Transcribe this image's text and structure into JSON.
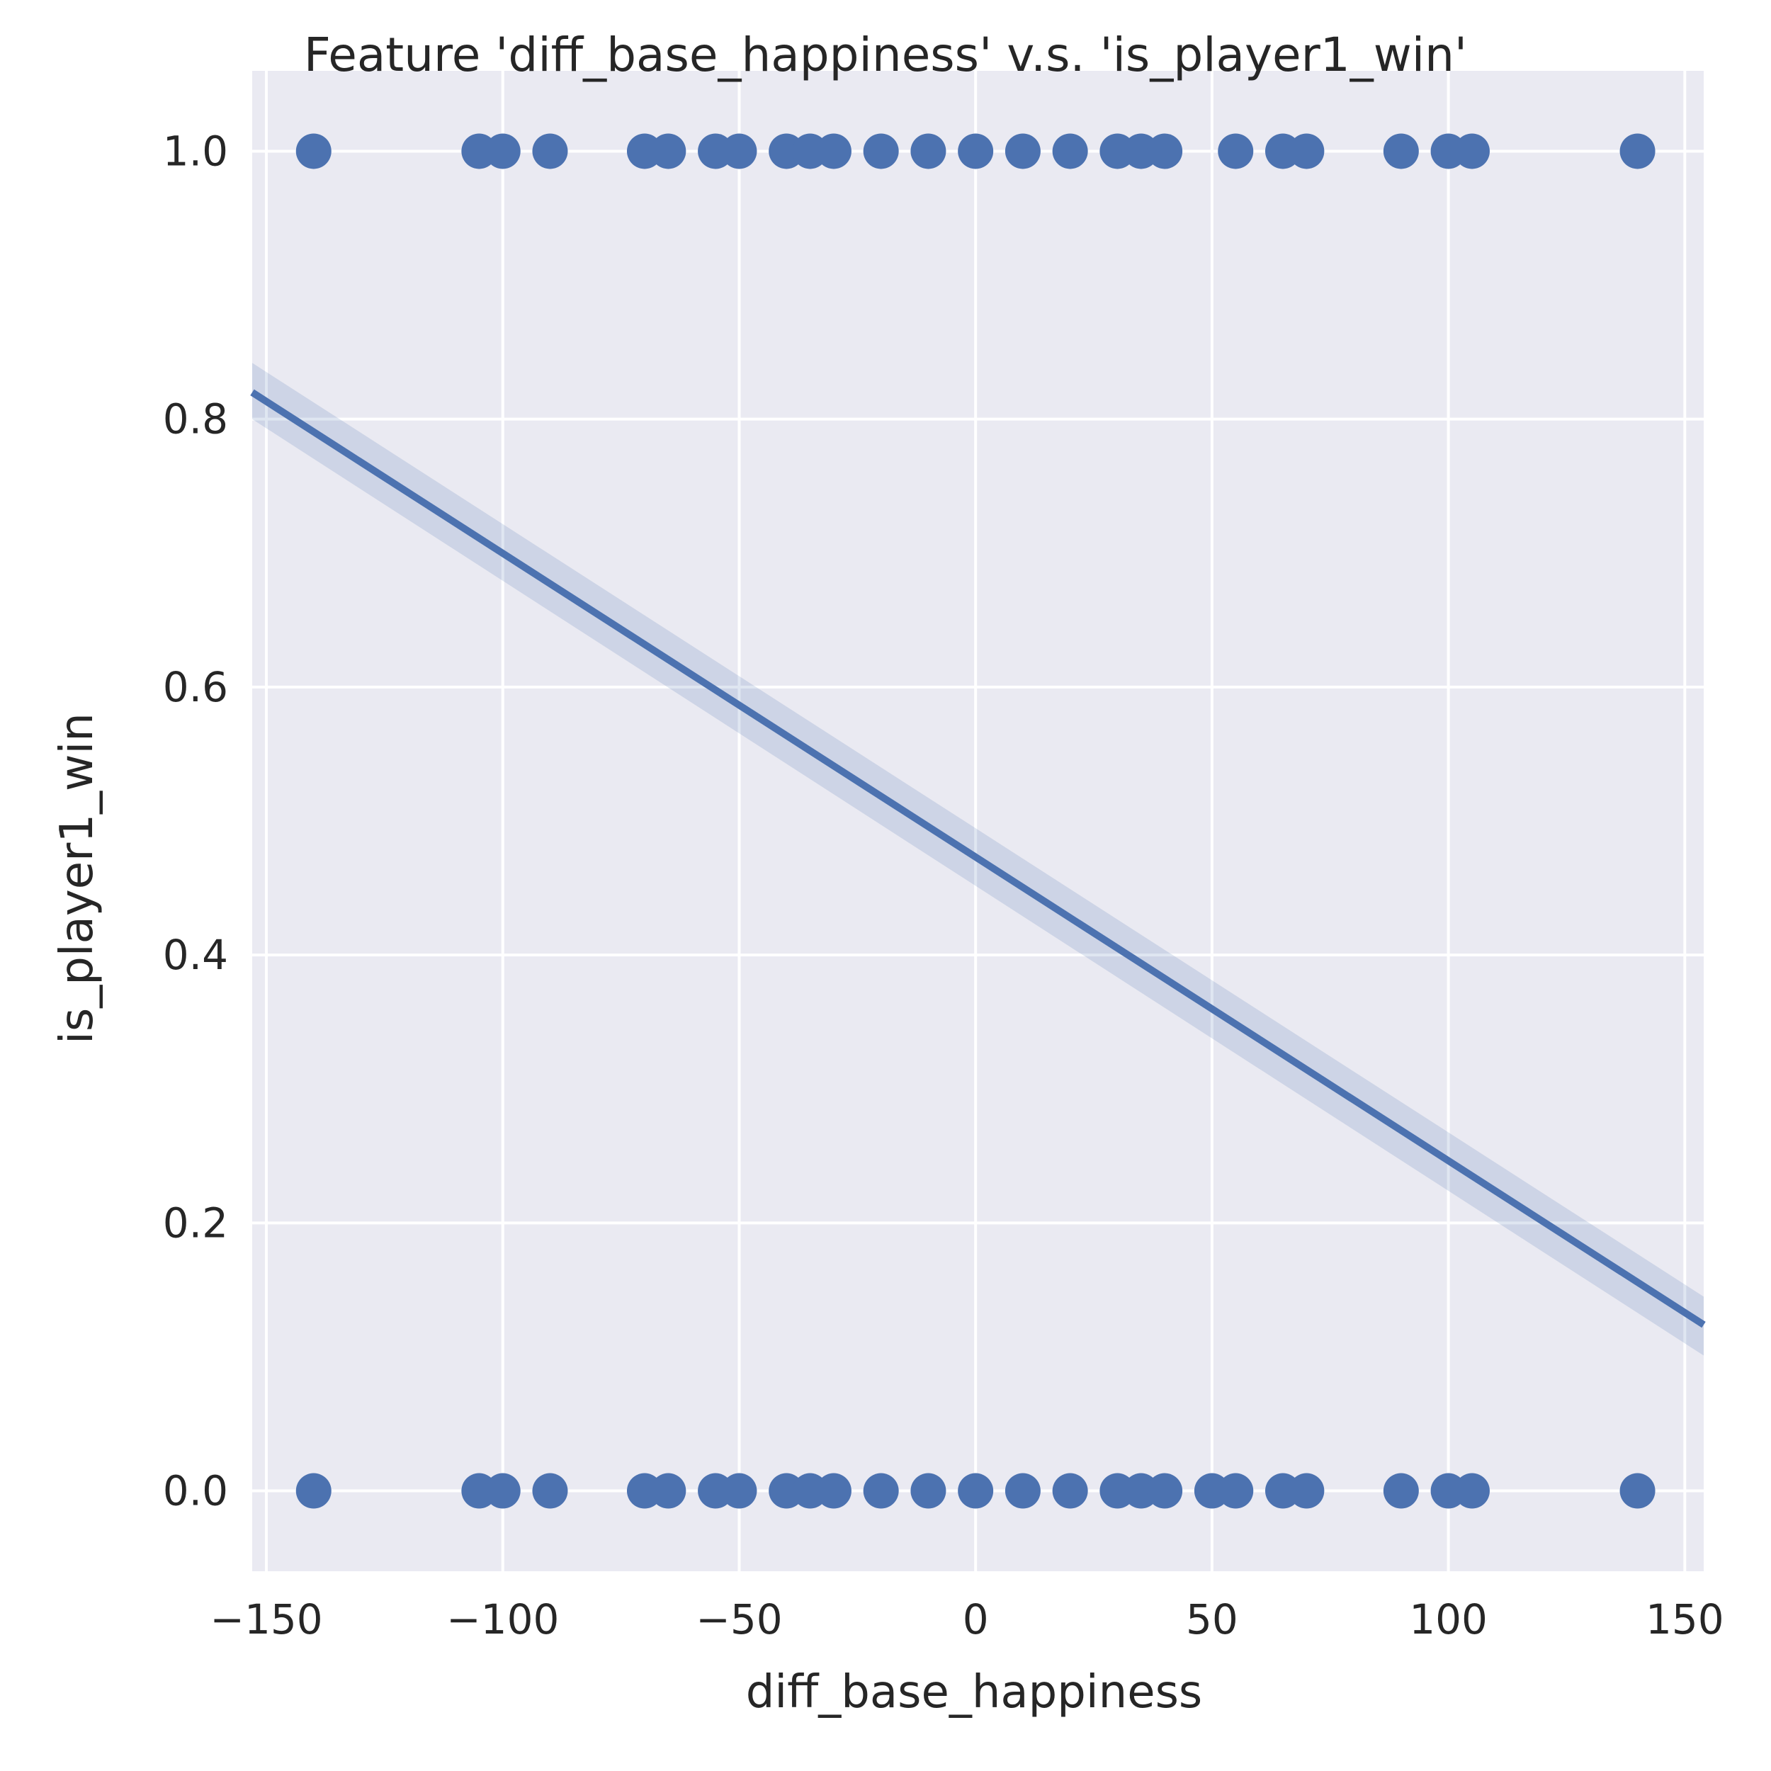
{
  "chart_data": {
    "type": "scatter",
    "title": "Feature 'diff_base_happiness' v.s. 'is_player1_win'",
    "xlabel": "diff_base_happiness",
    "ylabel": "is_player1_win",
    "xlim": [
      -153,
      154
    ],
    "ylim": [
      -0.06,
      1.06
    ],
    "grid": true,
    "xticks": [
      {
        "value": -150,
        "label": "−150"
      },
      {
        "value": -100,
        "label": "−100"
      },
      {
        "value": -50,
        "label": "−50"
      },
      {
        "value": 0,
        "label": "0"
      },
      {
        "value": 50,
        "label": "50"
      },
      {
        "value": 100,
        "label": "100"
      },
      {
        "value": 150,
        "label": "150"
      }
    ],
    "yticks": [
      {
        "value": 0.0,
        "label": "0.0"
      },
      {
        "value": 0.2,
        "label": "0.2"
      },
      {
        "value": 0.4,
        "label": "0.4"
      },
      {
        "value": 0.6,
        "label": "0.6"
      },
      {
        "value": 0.8,
        "label": "0.8"
      },
      {
        "value": 1.0,
        "label": "1.0"
      }
    ],
    "points": [
      {
        "x": -140,
        "y": 1
      },
      {
        "x": -105,
        "y": 1
      },
      {
        "x": -100,
        "y": 1
      },
      {
        "x": -90,
        "y": 1
      },
      {
        "x": -70,
        "y": 1
      },
      {
        "x": -65,
        "y": 1
      },
      {
        "x": -55,
        "y": 1
      },
      {
        "x": -50,
        "y": 1
      },
      {
        "x": -40,
        "y": 1
      },
      {
        "x": -35,
        "y": 1
      },
      {
        "x": -30,
        "y": 1
      },
      {
        "x": -20,
        "y": 1
      },
      {
        "x": -10,
        "y": 1
      },
      {
        "x": 0,
        "y": 1
      },
      {
        "x": 10,
        "y": 1
      },
      {
        "x": 20,
        "y": 1
      },
      {
        "x": 30,
        "y": 1
      },
      {
        "x": 35,
        "y": 1
      },
      {
        "x": 40,
        "y": 1
      },
      {
        "x": 55,
        "y": 1
      },
      {
        "x": 65,
        "y": 1
      },
      {
        "x": 70,
        "y": 1
      },
      {
        "x": 90,
        "y": 1
      },
      {
        "x": 100,
        "y": 1
      },
      {
        "x": 105,
        "y": 1
      },
      {
        "x": 140,
        "y": 1
      },
      {
        "x": -140,
        "y": 0
      },
      {
        "x": -105,
        "y": 0
      },
      {
        "x": -100,
        "y": 0
      },
      {
        "x": -90,
        "y": 0
      },
      {
        "x": -70,
        "y": 0
      },
      {
        "x": -65,
        "y": 0
      },
      {
        "x": -55,
        "y": 0
      },
      {
        "x": -50,
        "y": 0
      },
      {
        "x": -40,
        "y": 0
      },
      {
        "x": -35,
        "y": 0
      },
      {
        "x": -30,
        "y": 0
      },
      {
        "x": -20,
        "y": 0
      },
      {
        "x": -10,
        "y": 0
      },
      {
        "x": 0,
        "y": 0
      },
      {
        "x": 10,
        "y": 0
      },
      {
        "x": 20,
        "y": 0
      },
      {
        "x": 30,
        "y": 0
      },
      {
        "x": 35,
        "y": 0
      },
      {
        "x": 40,
        "y": 0
      },
      {
        "x": 50,
        "y": 0
      },
      {
        "x": 55,
        "y": 0
      },
      {
        "x": 65,
        "y": 0
      },
      {
        "x": 70,
        "y": 0
      },
      {
        "x": 90,
        "y": 0
      },
      {
        "x": 100,
        "y": 0
      },
      {
        "x": 105,
        "y": 0
      },
      {
        "x": 140,
        "y": 0
      }
    ],
    "regression": {
      "x": [
        -153,
        154
      ],
      "y": [
        0.82,
        0.124
      ],
      "ci_upper": [
        0.842,
        0.145
      ],
      "ci_lower": [
        0.8,
        0.101
      ]
    },
    "colors": {
      "background": "#eaeaf2",
      "grid": "#ffffff",
      "marker": "#4c72b0",
      "line": "#4c72b0",
      "band": "#4c72b0"
    }
  }
}
